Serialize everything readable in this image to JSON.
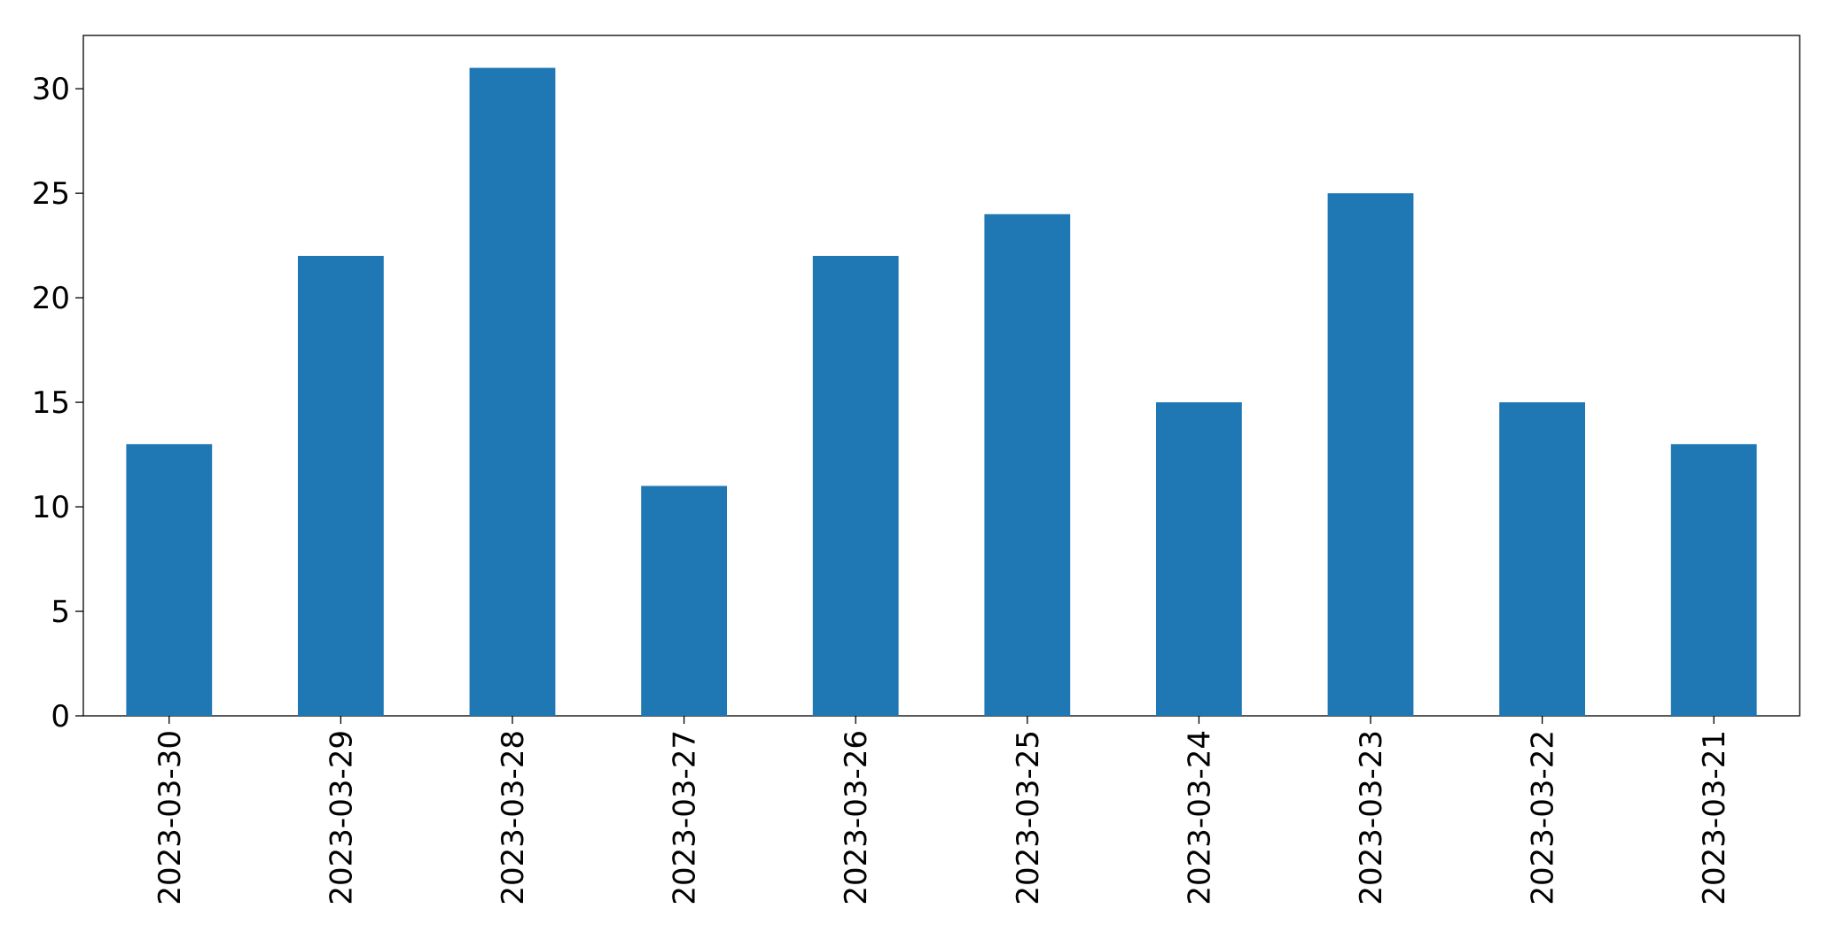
{
  "chart_data": {
    "type": "bar",
    "categories": [
      "2023-03-30",
      "2023-03-29",
      "2023-03-28",
      "2023-03-27",
      "2023-03-26",
      "2023-03-25",
      "2023-03-24",
      "2023-03-23",
      "2023-03-22",
      "2023-03-21"
    ],
    "values": [
      13,
      22,
      31,
      11,
      22,
      24,
      15,
      25,
      15,
      13
    ],
    "color": "#1f77b4",
    "ylim": [
      0,
      32.55
    ],
    "yticks": [
      0,
      5,
      10,
      15,
      20,
      25,
      30
    ],
    "grid": false
  }
}
